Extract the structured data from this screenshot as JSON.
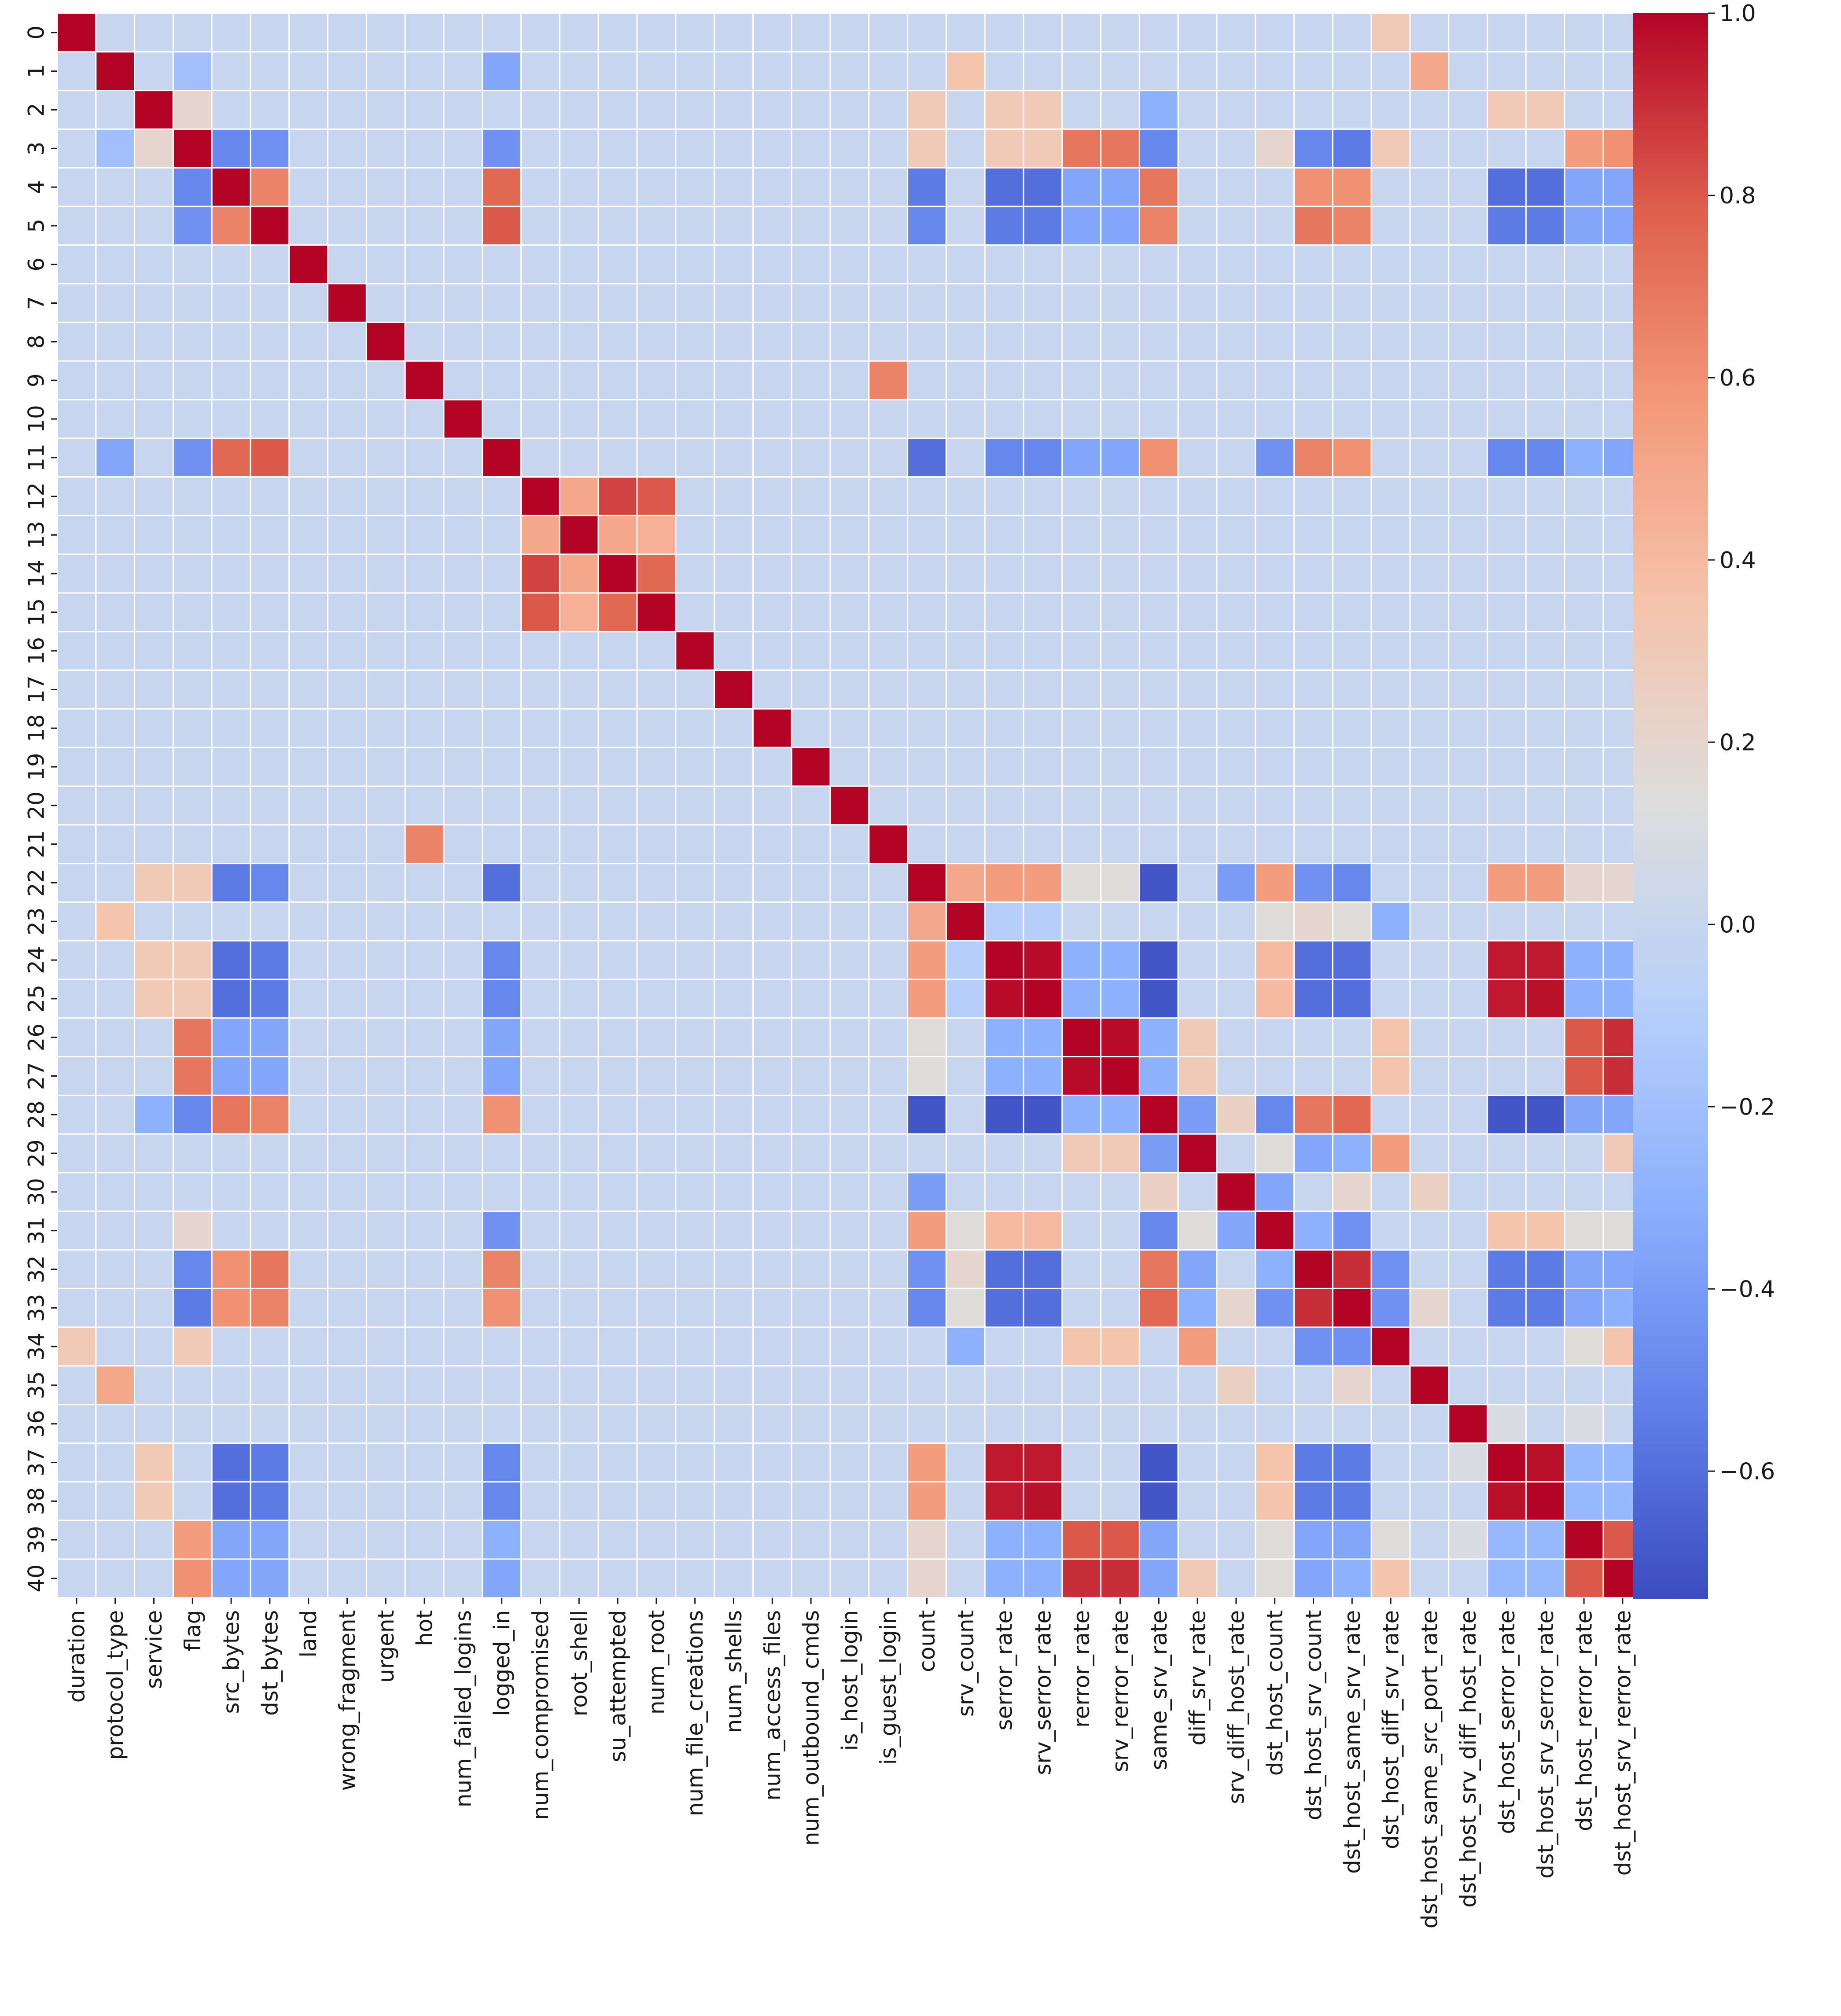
{
  "chart_data": {
    "type": "heatmap",
    "title": "",
    "xlabel": "",
    "ylabel": "",
    "colormap": "coolwarm",
    "vmin": -0.74,
    "vmax": 1.0,
    "grid": true,
    "row_labels": [
      "0",
      "1",
      "2",
      "3",
      "4",
      "5",
      "6",
      "7",
      "8",
      "9",
      "10",
      "11",
      "12",
      "13",
      "14",
      "15",
      "16",
      "17",
      "18",
      "19",
      "20",
      "21",
      "22",
      "23",
      "24",
      "25",
      "26",
      "27",
      "28",
      "29",
      "30",
      "31",
      "32",
      "33",
      "34",
      "35",
      "36",
      "37",
      "38",
      "39",
      "40"
    ],
    "col_labels": [
      "duration",
      "protocol_type",
      "service",
      "flag",
      "src_bytes",
      "dst_bytes",
      "land",
      "wrong_fragment",
      "urgent",
      "hot",
      "num_failed_logins",
      "logged_in",
      "num_compromised",
      "root_shell",
      "su_attempted",
      "num_root",
      "num_file_creations",
      "num_shells",
      "num_access_files",
      "num_outbound_cmds",
      "is_host_login",
      "is_guest_login",
      "count",
      "srv_count",
      "serror_rate",
      "srv_serror_rate",
      "rerror_rate",
      "srv_rerror_rate",
      "same_srv_rate",
      "diff_srv_rate",
      "srv_diff_host_rate",
      "dst_host_count",
      "dst_host_srv_count",
      "dst_host_same_srv_rate",
      "dst_host_diff_srv_rate",
      "dst_host_same_src_port_rate",
      "dst_host_srv_diff_host_rate",
      "dst_host_serror_rate",
      "dst_host_srv_serror_rate",
      "dst_host_rerror_rate",
      "dst_host_srv_rerror_rate"
    ],
    "colorbar_ticks": [
      {
        "value": 1.0,
        "label": "1.0"
      },
      {
        "value": 0.8,
        "label": "0.8"
      },
      {
        "value": 0.6,
        "label": "0.6"
      },
      {
        "value": 0.4,
        "label": "0.4"
      },
      {
        "value": 0.2,
        "label": "0.2"
      },
      {
        "value": 0.0,
        "label": "0.0"
      },
      {
        "value": -0.2,
        "label": "−0.2"
      },
      {
        "value": -0.4,
        "label": "−0.4"
      },
      {
        "value": -0.6,
        "label": "−0.6"
      }
    ],
    "default_value": 0.0,
    "values_sparse": [
      [
        0,
        34,
        0.3
      ],
      [
        1,
        3,
        -0.2
      ],
      [
        1,
        11,
        -0.35
      ],
      [
        1,
        23,
        0.35
      ],
      [
        1,
        35,
        0.5
      ],
      [
        2,
        3,
        0.2
      ],
      [
        2,
        22,
        0.3
      ],
      [
        2,
        24,
        0.3
      ],
      [
        2,
        25,
        0.3
      ],
      [
        2,
        28,
        -0.3
      ],
      [
        2,
        37,
        0.3
      ],
      [
        2,
        38,
        0.3
      ],
      [
        3,
        4,
        -0.5
      ],
      [
        3,
        5,
        -0.45
      ],
      [
        3,
        11,
        -0.45
      ],
      [
        3,
        22,
        0.3
      ],
      [
        3,
        24,
        0.3
      ],
      [
        3,
        25,
        0.3
      ],
      [
        3,
        26,
        0.7
      ],
      [
        3,
        27,
        0.7
      ],
      [
        3,
        28,
        -0.5
      ],
      [
        3,
        31,
        0.2
      ],
      [
        3,
        32,
        -0.5
      ],
      [
        3,
        33,
        -0.55
      ],
      [
        3,
        34,
        0.3
      ],
      [
        3,
        39,
        0.55
      ],
      [
        3,
        40,
        0.6
      ],
      [
        4,
        5,
        0.65
      ],
      [
        4,
        11,
        0.75
      ],
      [
        4,
        22,
        -0.55
      ],
      [
        4,
        24,
        -0.6
      ],
      [
        4,
        25,
        -0.6
      ],
      [
        4,
        26,
        -0.35
      ],
      [
        4,
        27,
        -0.35
      ],
      [
        4,
        28,
        0.7
      ],
      [
        4,
        32,
        0.6
      ],
      [
        4,
        33,
        0.6
      ],
      [
        4,
        37,
        -0.6
      ],
      [
        4,
        38,
        -0.6
      ],
      [
        4,
        39,
        -0.35
      ],
      [
        4,
        40,
        -0.35
      ],
      [
        5,
        11,
        0.8
      ],
      [
        5,
        22,
        -0.5
      ],
      [
        5,
        24,
        -0.55
      ],
      [
        5,
        25,
        -0.55
      ],
      [
        5,
        26,
        -0.35
      ],
      [
        5,
        27,
        -0.35
      ],
      [
        5,
        28,
        0.65
      ],
      [
        5,
        32,
        0.7
      ],
      [
        5,
        33,
        0.65
      ],
      [
        5,
        37,
        -0.55
      ],
      [
        5,
        38,
        -0.55
      ],
      [
        5,
        39,
        -0.35
      ],
      [
        5,
        40,
        -0.35
      ],
      [
        9,
        21,
        0.65
      ],
      [
        11,
        22,
        -0.6
      ],
      [
        11,
        24,
        -0.5
      ],
      [
        11,
        25,
        -0.5
      ],
      [
        11,
        26,
        -0.35
      ],
      [
        11,
        27,
        -0.35
      ],
      [
        11,
        28,
        0.6
      ],
      [
        11,
        31,
        -0.45
      ],
      [
        11,
        32,
        0.65
      ],
      [
        11,
        33,
        0.6
      ],
      [
        11,
        37,
        -0.5
      ],
      [
        11,
        38,
        -0.5
      ],
      [
        11,
        39,
        -0.3
      ],
      [
        11,
        40,
        -0.35
      ],
      [
        12,
        13,
        0.5
      ],
      [
        12,
        14,
        0.85
      ],
      [
        12,
        15,
        0.8
      ],
      [
        13,
        14,
        0.5
      ],
      [
        13,
        15,
        0.45
      ],
      [
        14,
        15,
        0.75
      ],
      [
        22,
        23,
        0.5
      ],
      [
        22,
        24,
        0.55
      ],
      [
        22,
        25,
        0.55
      ],
      [
        22,
        26,
        0.15
      ],
      [
        22,
        27,
        0.15
      ],
      [
        22,
        28,
        -0.7
      ],
      [
        22,
        30,
        -0.4
      ],
      [
        22,
        31,
        0.55
      ],
      [
        22,
        32,
        -0.45
      ],
      [
        22,
        33,
        -0.5
      ],
      [
        22,
        37,
        0.55
      ],
      [
        22,
        38,
        0.55
      ],
      [
        22,
        39,
        0.2
      ],
      [
        22,
        40,
        0.2
      ],
      [
        23,
        24,
        -0.1
      ],
      [
        23,
        25,
        -0.1
      ],
      [
        23,
        31,
        0.15
      ],
      [
        23,
        32,
        0.2
      ],
      [
        23,
        33,
        0.15
      ],
      [
        23,
        34,
        -0.3
      ],
      [
        24,
        25,
        0.98
      ],
      [
        24,
        26,
        -0.3
      ],
      [
        24,
        27,
        -0.3
      ],
      [
        24,
        28,
        -0.7
      ],
      [
        24,
        31,
        0.4
      ],
      [
        24,
        32,
        -0.6
      ],
      [
        24,
        33,
        -0.6
      ],
      [
        24,
        37,
        0.95
      ],
      [
        24,
        38,
        0.95
      ],
      [
        24,
        39,
        -0.3
      ],
      [
        24,
        40,
        -0.3
      ],
      [
        25,
        26,
        -0.3
      ],
      [
        25,
        27,
        -0.3
      ],
      [
        25,
        28,
        -0.7
      ],
      [
        25,
        31,
        0.4
      ],
      [
        25,
        32,
        -0.6
      ],
      [
        25,
        33,
        -0.6
      ],
      [
        25,
        37,
        0.95
      ],
      [
        25,
        38,
        0.97
      ],
      [
        25,
        39,
        -0.3
      ],
      [
        25,
        40,
        -0.3
      ],
      [
        26,
        27,
        0.98
      ],
      [
        26,
        28,
        -0.3
      ],
      [
        26,
        29,
        0.3
      ],
      [
        26,
        34,
        0.35
      ],
      [
        26,
        39,
        0.8
      ],
      [
        26,
        40,
        0.9
      ],
      [
        27,
        28,
        -0.3
      ],
      [
        27,
        29,
        0.3
      ],
      [
        27,
        34,
        0.35
      ],
      [
        27,
        39,
        0.8
      ],
      [
        27,
        40,
        0.9
      ],
      [
        28,
        29,
        -0.4
      ],
      [
        28,
        30,
        0.25
      ],
      [
        28,
        31,
        -0.5
      ],
      [
        28,
        32,
        0.7
      ],
      [
        28,
        33,
        0.75
      ],
      [
        28,
        37,
        -0.7
      ],
      [
        28,
        38,
        -0.7
      ],
      [
        28,
        39,
        -0.35
      ],
      [
        28,
        40,
        -0.35
      ],
      [
        29,
        31,
        0.15
      ],
      [
        29,
        32,
        -0.35
      ],
      [
        29,
        33,
        -0.3
      ],
      [
        29,
        34,
        0.55
      ],
      [
        29,
        40,
        0.3
      ],
      [
        30,
        31,
        -0.35
      ],
      [
        30,
        33,
        0.2
      ],
      [
        30,
        35,
        0.25
      ],
      [
        31,
        32,
        -0.3
      ],
      [
        31,
        33,
        -0.45
      ],
      [
        31,
        37,
        0.35
      ],
      [
        31,
        38,
        0.35
      ],
      [
        31,
        39,
        0.15
      ],
      [
        31,
        40,
        0.15
      ],
      [
        32,
        33,
        0.9
      ],
      [
        32,
        34,
        -0.45
      ],
      [
        32,
        37,
        -0.55
      ],
      [
        32,
        38,
        -0.55
      ],
      [
        32,
        39,
        -0.35
      ],
      [
        32,
        40,
        -0.35
      ],
      [
        33,
        34,
        -0.45
      ],
      [
        33,
        35,
        0.2
      ],
      [
        33,
        37,
        -0.55
      ],
      [
        33,
        38,
        -0.55
      ],
      [
        33,
        39,
        -0.35
      ],
      [
        33,
        40,
        -0.3
      ],
      [
        34,
        39,
        0.15
      ],
      [
        34,
        40,
        0.35
      ],
      [
        36,
        37,
        0.1
      ],
      [
        36,
        39,
        0.1
      ],
      [
        37,
        38,
        0.97
      ],
      [
        37,
        39,
        -0.25
      ],
      [
        37,
        40,
        -0.25
      ],
      [
        38,
        39,
        -0.25
      ],
      [
        38,
        40,
        -0.25
      ],
      [
        39,
        40,
        0.8
      ]
    ]
  }
}
